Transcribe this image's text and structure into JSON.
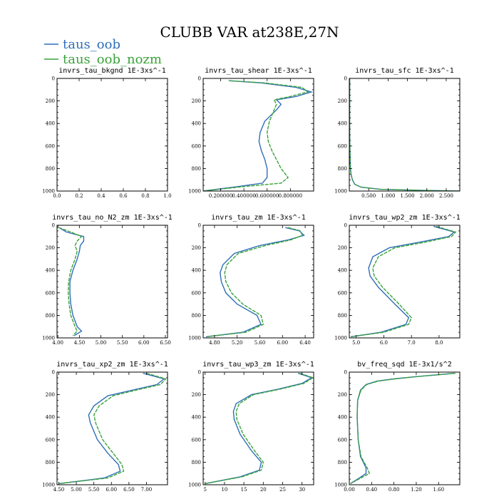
{
  "figure": {
    "title": "CLUBB VAR at238E,27N",
    "legend": [
      {
        "label": "taus_oob",
        "color": "#2f6fb8"
      },
      {
        "label": "taus_oob_nozm",
        "color": "#3aa23a"
      }
    ]
  },
  "chart_data": [
    {
      "type": "line",
      "title": "invrs_tau_bkgnd",
      "units": "1E-3xs^-1",
      "xlim": [
        0.0,
        1.0
      ],
      "ylim": [
        1000,
        0
      ],
      "xticks": [
        0.0,
        0.2,
        0.4,
        0.6,
        0.8,
        1.0
      ],
      "xtick_labels": [
        "0.0",
        "0.2",
        "0.4",
        "0.6",
        "0.8",
        "1.0"
      ],
      "yticks": [
        0,
        200,
        400,
        600,
        800,
        1000
      ],
      "ytick_labels": [
        "0",
        "200",
        "400",
        "600",
        "800",
        "1000"
      ],
      "series": []
    },
    {
      "type": "line",
      "title": "invrs_tau_shear",
      "units": "1E-3xs^-1",
      "xlim": [
        0.05,
        1.0
      ],
      "ylim": [
        1000,
        0
      ],
      "xticks": [
        0.2,
        0.4,
        0.6,
        0.8
      ],
      "xtick_labels": [
        "0.200000",
        "0.400000",
        "0.600000",
        "0.800000"
      ],
      "yticks": [
        0,
        200,
        400,
        600,
        800,
        1000
      ],
      "ytick_labels": [
        "0",
        "200",
        "400",
        "600",
        "800",
        "1000"
      ],
      "series": [
        {
          "color": "#2f6fb8",
          "x": [
            0.27,
            0.55,
            0.85,
            0.98,
            0.85,
            0.68,
            0.72,
            0.68,
            0.58,
            0.54,
            0.53,
            0.55,
            0.58,
            0.6,
            0.6,
            0.56,
            0.35,
            0.05
          ],
          "y": [
            20,
            40,
            80,
            120,
            160,
            190,
            230,
            280,
            380,
            480,
            560,
            640,
            720,
            800,
            880,
            930,
            960,
            1000
          ]
        },
        {
          "color": "#3aa23a",
          "x": [
            0.27,
            0.58,
            0.9,
            0.95,
            0.8,
            0.66,
            0.68,
            0.66,
            0.62,
            0.6,
            0.61,
            0.64,
            0.68,
            0.72,
            0.78,
            0.72,
            0.4,
            0.05
          ],
          "y": [
            20,
            40,
            80,
            120,
            160,
            190,
            230,
            280,
            380,
            480,
            560,
            640,
            720,
            800,
            880,
            930,
            960,
            1000
          ]
        }
      ]
    },
    {
      "type": "line",
      "title": "invrs_tau_sfc",
      "units": "1E-3xs^-1",
      "xlim": [
        0.0,
        2.85
      ],
      "ylim": [
        1000,
        0
      ],
      "xticks": [
        0.5,
        1.0,
        1.5,
        2.0,
        2.5
      ],
      "xtick_labels": [
        "0.500",
        "1.000",
        "1.500",
        "2.000",
        "2.500"
      ],
      "yticks": [
        0,
        200,
        400,
        600,
        800,
        1000
      ],
      "ytick_labels": [
        "0",
        "200",
        "400",
        "600",
        "800",
        "1000"
      ],
      "series": [
        {
          "color": "#2f6fb8",
          "x": [
            0.01,
            0.01,
            0.02,
            0.03,
            0.05,
            0.08,
            0.14,
            0.3,
            0.8,
            2.0,
            2.85
          ],
          "y": [
            0,
            500,
            700,
            800,
            860,
            900,
            940,
            965,
            985,
            995,
            1000
          ]
        },
        {
          "color": "#3aa23a",
          "x": [
            0.01,
            0.01,
            0.02,
            0.03,
            0.05,
            0.08,
            0.14,
            0.3,
            0.8,
            2.0,
            2.85
          ],
          "y": [
            0,
            500,
            700,
            800,
            860,
            900,
            940,
            965,
            985,
            995,
            1000
          ]
        }
      ]
    },
    {
      "type": "line",
      "title": "invrs_tau_no_N2_zm",
      "units": "1E-3xs^-1",
      "xlim": [
        3.98,
        6.55
      ],
      "ylim": [
        1000,
        0
      ],
      "xticks": [
        4.0,
        4.5,
        5.0,
        5.5,
        6.0,
        6.5
      ],
      "xtick_labels": [
        "4.00",
        "4.50",
        "5.00",
        "5.50",
        "6.00",
        "6.50"
      ],
      "yticks": [
        0,
        200,
        400,
        600,
        800,
        1000
      ],
      "ytick_labels": [
        "0",
        "200",
        "400",
        "600",
        "800",
        "1000"
      ],
      "series": [
        {
          "color": "#2f6fb8",
          "x": [
            4.02,
            4.2,
            4.6,
            4.6,
            4.52,
            4.5,
            4.45,
            4.35,
            4.28,
            4.28,
            4.3,
            4.35,
            4.45,
            4.55,
            4.38
          ],
          "y": [
            20,
            60,
            100,
            140,
            180,
            230,
            300,
            400,
            500,
            600,
            700,
            800,
            900,
            940,
            980
          ]
        },
        {
          "color": "#3aa23a",
          "x": [
            4.02,
            4.3,
            4.55,
            4.45,
            4.4,
            4.45,
            4.4,
            4.3,
            4.25,
            4.24,
            4.26,
            4.3,
            4.4,
            4.45,
            4.35
          ],
          "y": [
            20,
            60,
            100,
            140,
            180,
            230,
            300,
            400,
            500,
            600,
            700,
            800,
            900,
            940,
            980
          ]
        }
      ]
    },
    {
      "type": "line",
      "title": "invrs_tau_zm",
      "units": "1E-3xs^-1",
      "xlim": [
        4.6,
        6.55
      ],
      "ylim": [
        1000,
        0
      ],
      "xticks": [
        4.8,
        5.2,
        5.6,
        6.0,
        6.4
      ],
      "xtick_labels": [
        "4.80",
        "5.20",
        "5.60",
        "6.00",
        "6.40"
      ],
      "yticks": [
        0,
        200,
        400,
        600,
        800,
        1000
      ],
      "ytick_labels": [
        "0",
        "200",
        "400",
        "600",
        "800",
        "1000"
      ],
      "series": [
        {
          "color": "#2f6fb8",
          "x": [
            6.05,
            6.3,
            6.38,
            6.1,
            5.6,
            5.15,
            4.95,
            4.9,
            4.92,
            5.0,
            5.2,
            5.55,
            5.62,
            5.3,
            4.65
          ],
          "y": [
            20,
            50,
            90,
            130,
            180,
            250,
            350,
            420,
            500,
            600,
            700,
            800,
            880,
            950,
            990
          ]
        },
        {
          "color": "#3aa23a",
          "x": [
            6.1,
            6.32,
            6.35,
            6.15,
            5.7,
            5.22,
            5.02,
            4.98,
            5.0,
            5.1,
            5.3,
            5.62,
            5.66,
            5.35,
            4.65
          ],
          "y": [
            20,
            50,
            90,
            130,
            180,
            250,
            350,
            420,
            500,
            600,
            700,
            800,
            880,
            950,
            990
          ]
        }
      ]
    },
    {
      "type": "line",
      "title": "invrs_tau_wp2_zm",
      "units": "1E-3xs^-1",
      "xlim": [
        4.75,
        8.75
      ],
      "ylim": [
        1000,
        0
      ],
      "xticks": [
        5.0,
        6.0,
        7.0,
        8.0
      ],
      "xtick_labels": [
        "5.0",
        "6.0",
        "7.0",
        "8.0"
      ],
      "yticks": [
        0,
        200,
        400,
        600,
        800,
        1000
      ],
      "ytick_labels": [
        "0",
        "200",
        "400",
        "600",
        "800",
        "1000"
      ],
      "series": [
        {
          "color": "#2f6fb8",
          "x": [
            7.8,
            8.55,
            8.35,
            7.3,
            6.2,
            5.6,
            5.45,
            5.5,
            5.8,
            6.4,
            6.9,
            6.8,
            5.9,
            4.8
          ],
          "y": [
            10,
            60,
            100,
            150,
            200,
            280,
            380,
            450,
            550,
            700,
            820,
            880,
            950,
            990
          ]
        },
        {
          "color": "#3aa23a",
          "x": [
            7.9,
            8.6,
            8.45,
            7.5,
            6.4,
            5.8,
            5.6,
            5.65,
            5.95,
            6.55,
            7.0,
            6.9,
            6.0,
            4.8
          ],
          "y": [
            10,
            60,
            100,
            150,
            200,
            280,
            380,
            450,
            550,
            700,
            820,
            880,
            950,
            990
          ]
        }
      ]
    },
    {
      "type": "line",
      "title": "invrs_tau_xp2_zm",
      "units": "1E-3xs^-1",
      "xlim": [
        4.45,
        7.6
      ],
      "ylim": [
        1000,
        0
      ],
      "xticks": [
        4.5,
        5.0,
        5.5,
        6.0,
        6.5,
        7.0
      ],
      "xtick_labels": [
        "4.50",
        "5.00",
        "5.50",
        "6.00",
        "6.50",
        "7.00"
      ],
      "yticks": [
        0,
        200,
        400,
        600,
        800,
        1000
      ],
      "ytick_labels": [
        "0",
        "200",
        "400",
        "600",
        "800",
        "1000"
      ],
      "series": [
        {
          "color": "#2f6fb8",
          "x": [
            6.9,
            7.5,
            7.3,
            6.6,
            5.9,
            5.5,
            5.35,
            5.4,
            5.6,
            5.9,
            6.2,
            6.25,
            5.8,
            4.5
          ],
          "y": [
            10,
            60,
            110,
            160,
            210,
            300,
            380,
            450,
            600,
            720,
            820,
            880,
            940,
            990
          ]
        },
        {
          "color": "#3aa23a",
          "x": [
            7.0,
            7.55,
            7.4,
            6.7,
            6.05,
            5.65,
            5.5,
            5.55,
            5.75,
            6.05,
            6.3,
            6.35,
            5.9,
            4.5
          ],
          "y": [
            10,
            60,
            110,
            160,
            210,
            300,
            380,
            450,
            600,
            720,
            820,
            880,
            940,
            990
          ]
        }
      ]
    },
    {
      "type": "line",
      "title": "invrs_tau_wp3_zm",
      "units": "1E-3xs^-1",
      "xlim": [
        4.5,
        33
      ],
      "ylim": [
        1000,
        0
      ],
      "xticks": [
        5,
        10,
        15,
        20,
        25,
        30
      ],
      "xtick_labels": [
        "5",
        "10",
        "15",
        "20",
        "25",
        "30"
      ],
      "yticks": [
        0,
        200,
        400,
        600,
        800,
        1000
      ],
      "ytick_labels": [
        "0",
        "200",
        "400",
        "600",
        "800",
        "1000"
      ],
      "series": [
        {
          "color": "#2f6fb8",
          "x": [
            29,
            32.5,
            30,
            24,
            17,
            13,
            12.3,
            12.5,
            14,
            17,
            19.5,
            19,
            14,
            5
          ],
          "y": [
            10,
            50,
            100,
            150,
            200,
            280,
            350,
            420,
            550,
            700,
            800,
            870,
            930,
            990
          ]
        },
        {
          "color": "#3aa23a",
          "x": [
            29.5,
            32.8,
            30.5,
            24.5,
            17.5,
            13.8,
            13,
            13.2,
            14.8,
            17.8,
            20,
            19.5,
            14.5,
            5
          ],
          "y": [
            10,
            50,
            100,
            150,
            200,
            280,
            350,
            420,
            550,
            700,
            800,
            870,
            930,
            990
          ]
        }
      ]
    },
    {
      "type": "line",
      "title": "bv_freq_sqd",
      "units": "1E-3x1/s^2",
      "xlim": [
        0.0,
        1.98
      ],
      "ylim": [
        1000,
        0
      ],
      "xticks": [
        0.0,
        0.4,
        0.8,
        1.2,
        1.6
      ],
      "xtick_labels": [
        "0.00",
        "0.40",
        "0.80",
        "1.20",
        "1.60"
      ],
      "yticks": [
        0,
        200,
        400,
        600,
        800,
        1000
      ],
      "ytick_labels": [
        "0",
        "200",
        "400",
        "600",
        "800",
        "1000"
      ],
      "series": [
        {
          "color": "#2f6fb8",
          "x": [
            1.9,
            1.2,
            0.8,
            0.5,
            0.3,
            0.2,
            0.15,
            0.14,
            0.16,
            0.2,
            0.3,
            0.3,
            0.15,
            0.02
          ],
          "y": [
            10,
            40,
            60,
            80,
            110,
            160,
            250,
            400,
            600,
            750,
            850,
            900,
            950,
            990
          ]
        },
        {
          "color": "#3aa23a",
          "x": [
            1.9,
            1.22,
            0.82,
            0.52,
            0.31,
            0.21,
            0.15,
            0.14,
            0.16,
            0.21,
            0.32,
            0.36,
            0.17,
            0.02
          ],
          "y": [
            10,
            40,
            60,
            80,
            110,
            160,
            250,
            400,
            600,
            750,
            850,
            900,
            950,
            990
          ]
        }
      ]
    }
  ]
}
